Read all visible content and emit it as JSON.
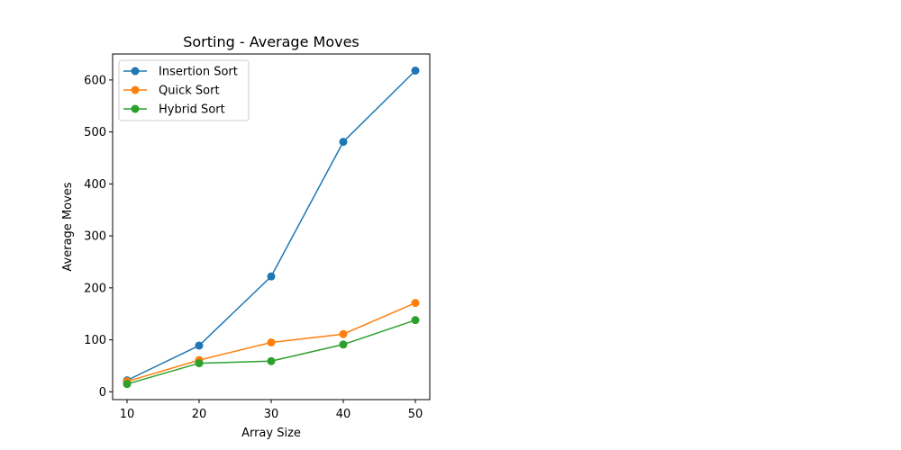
{
  "chart_data": {
    "type": "line",
    "title": "Sorting - Average Moves",
    "xlabel": "Array Size",
    "ylabel": "Average Moves",
    "x": [
      10,
      20,
      30,
      40,
      50
    ],
    "xlim": [
      8,
      52
    ],
    "ylim": [
      -15,
      650
    ],
    "xticks": [
      "10",
      "20",
      "30",
      "40",
      "50"
    ],
    "yticks": [
      "0",
      "100",
      "200",
      "300",
      "400",
      "500",
      "600"
    ],
    "grid": false,
    "legend_position": "top-left",
    "series": [
      {
        "name": "Insertion Sort",
        "color": "#1f77b4",
        "values": [
          22,
          89,
          222,
          481,
          618
        ]
      },
      {
        "name": "Quick Sort",
        "color": "#ff7f0e",
        "values": [
          20,
          61,
          95,
          111,
          171
        ]
      },
      {
        "name": "Hybrid Sort",
        "color": "#2ca02c",
        "values": [
          15,
          55,
          59,
          91,
          138
        ]
      }
    ]
  }
}
